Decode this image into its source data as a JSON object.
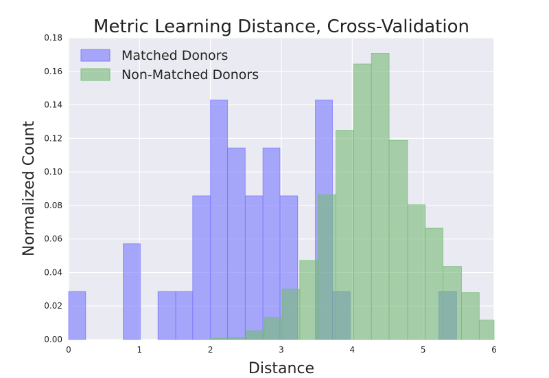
{
  "chart_data": {
    "type": "bar",
    "title": "Metric Learning Distance, Cross-Validation",
    "xlabel": "Distance",
    "ylabel": "Normalized Count",
    "xlim": [
      0,
      6
    ],
    "ylim": [
      0,
      0.18
    ],
    "xticks": [
      "0",
      "1",
      "2",
      "3",
      "4",
      "5",
      "6"
    ],
    "yticks": [
      "0.00",
      "0.02",
      "0.04",
      "0.06",
      "0.08",
      "0.10",
      "0.12",
      "0.14",
      "0.16",
      "0.18"
    ],
    "grid": true,
    "legend_position": "top-left",
    "series": [
      {
        "name": "Matched Donors",
        "color": "#7777ff",
        "bins": [
          [
            0.0,
            0.24,
            0.0286
          ],
          [
            0.77,
            1.01,
            0.0571
          ],
          [
            1.26,
            1.51,
            0.0286
          ],
          [
            1.51,
            1.75,
            0.0286
          ],
          [
            1.75,
            2.0,
            0.0857
          ],
          [
            2.0,
            2.24,
            0.1429
          ],
          [
            2.24,
            2.49,
            0.1143
          ],
          [
            2.49,
            2.74,
            0.0857
          ],
          [
            2.74,
            2.98,
            0.1143
          ],
          [
            2.98,
            3.23,
            0.0857
          ],
          [
            3.48,
            3.72,
            0.1429
          ],
          [
            3.72,
            3.97,
            0.0286
          ],
          [
            5.22,
            5.47,
            0.0286
          ]
        ]
      },
      {
        "name": "Non-Matched Donors",
        "color": "#77bb77",
        "bins": [
          [
            2.0,
            2.25,
            0.0008
          ],
          [
            2.25,
            2.5,
            0.0012
          ],
          [
            2.5,
            2.76,
            0.0052
          ],
          [
            2.76,
            3.01,
            0.0132
          ],
          [
            3.01,
            3.26,
            0.03
          ],
          [
            3.26,
            3.52,
            0.0472
          ],
          [
            3.52,
            3.77,
            0.0864
          ],
          [
            3.77,
            4.02,
            0.1248
          ],
          [
            4.02,
            4.27,
            0.1644
          ],
          [
            4.27,
            4.52,
            0.1708
          ],
          [
            4.52,
            4.78,
            0.1188
          ],
          [
            4.78,
            5.03,
            0.0804
          ],
          [
            5.03,
            5.28,
            0.0664
          ],
          [
            5.28,
            5.54,
            0.0436
          ],
          [
            5.54,
            5.79,
            0.028
          ],
          [
            5.79,
            6.04,
            0.0116
          ]
        ]
      }
    ]
  }
}
